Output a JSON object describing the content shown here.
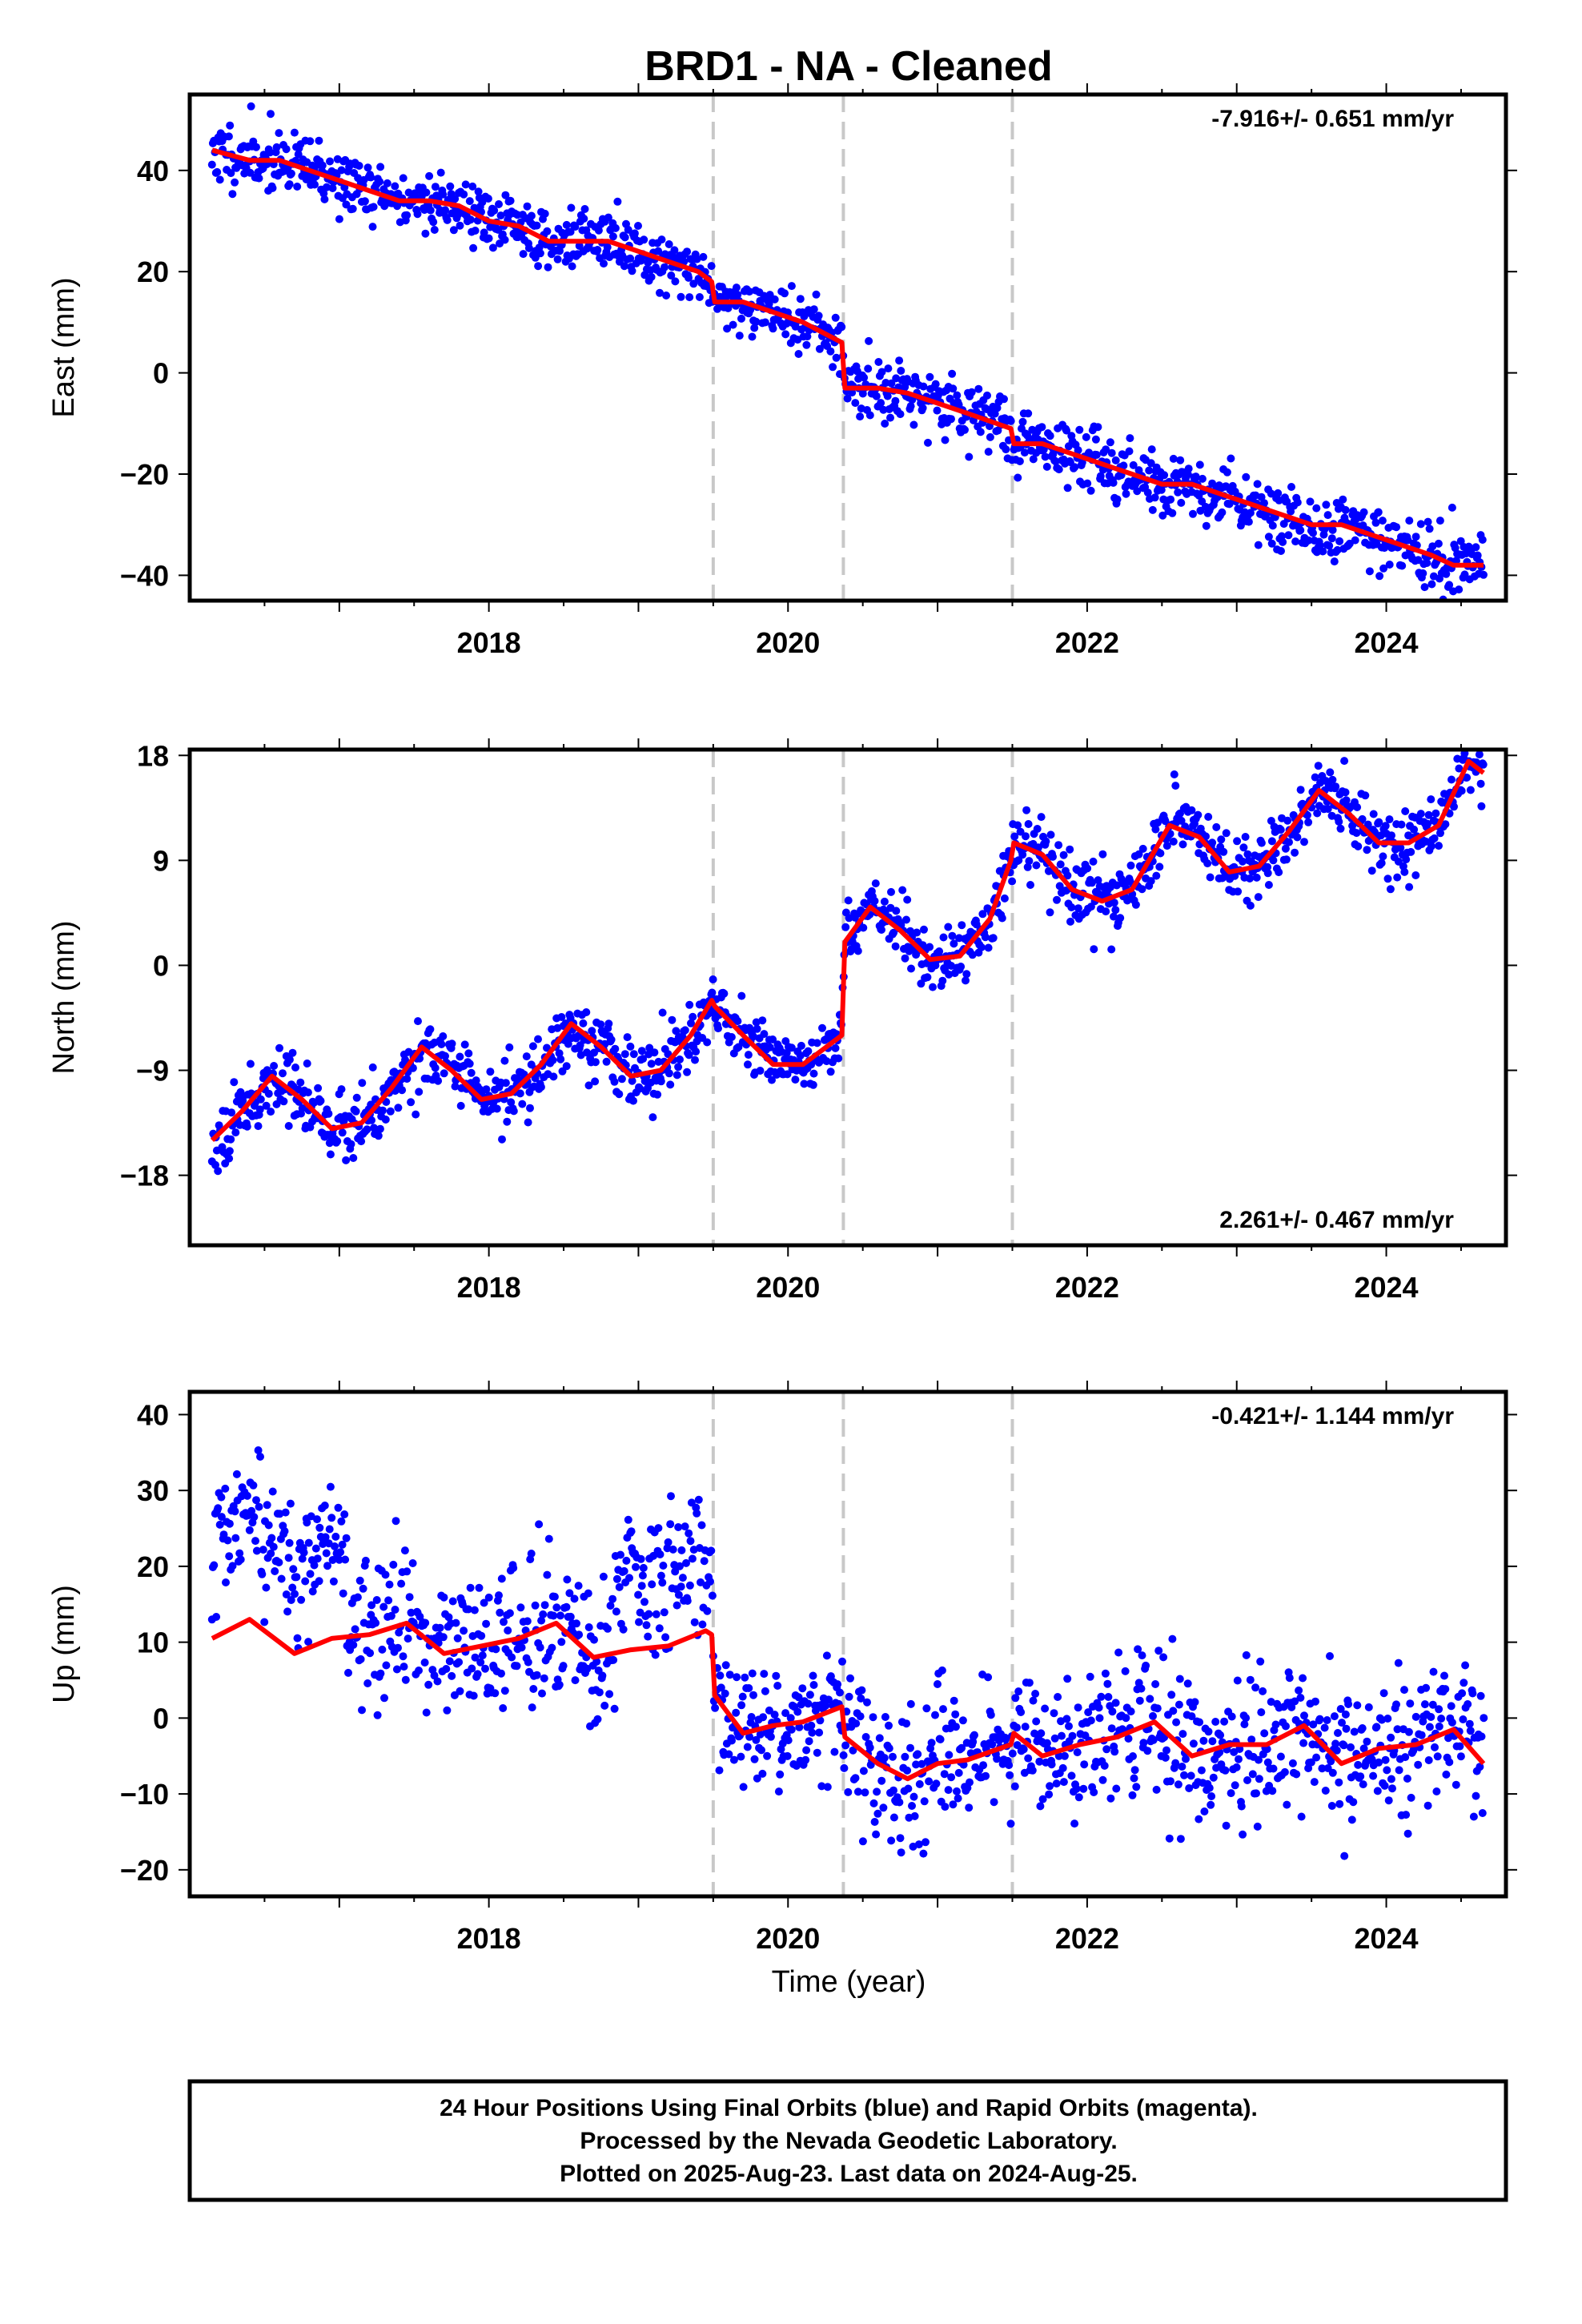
{
  "title": "BRD1  - NA - Cleaned",
  "xlabel": "Time (year)",
  "footer": {
    "line1": "24 Hour Positions Using Final Orbits (blue) and Rapid Orbits (magenta).",
    "line2": "Processed by the Nevada Geodetic Laboratory.",
    "line3": "Plotted on 2025-Aug-23. Last data on 2024-Aug-25."
  },
  "colors": {
    "data": "#0000ff",
    "model": "#ff0000",
    "steps": "#c8c8c8",
    "frame": "#000000"
  },
  "chart_data": [
    {
      "type": "scatter",
      "component": "East",
      "ylabel": "East (mm)",
      "rate_text": "-7.916+/- 0.651 mm/yr",
      "rate_position": "top-right",
      "xlim": [
        2016.0,
        2024.8
      ],
      "ylim": [
        -45,
        55
      ],
      "xticks": [
        2018,
        2020,
        2022,
        2024
      ],
      "yticks": [
        -40,
        -20,
        0,
        20,
        40
      ],
      "steps": [
        2019.5,
        2020.37,
        2021.5
      ],
      "model": {
        "x": [
          2016.15,
          2016.4,
          2016.6,
          2016.8,
          2017.0,
          2017.2,
          2017.4,
          2017.6,
          2017.8,
          2018.0,
          2018.2,
          2018.4,
          2018.6,
          2018.8,
          2019.0,
          2019.2,
          2019.4,
          2019.49,
          2019.51,
          2019.7,
          2019.9,
          2020.1,
          2020.36,
          2020.38,
          2020.6,
          2020.8,
          2021.0,
          2021.2,
          2021.49,
          2021.51,
          2021.7,
          2021.9,
          2022.1,
          2022.3,
          2022.5,
          2022.7,
          2022.9,
          2023.1,
          2023.3,
          2023.5,
          2023.7,
          2023.9,
          2024.1,
          2024.3,
          2024.45,
          2024.65
        ],
        "y": [
          44,
          42,
          42,
          40,
          38,
          36,
          34,
          34,
          33,
          30,
          29,
          26,
          26,
          26,
          24,
          22,
          20,
          18,
          14,
          14,
          12,
          10,
          6,
          -3,
          -3,
          -4,
          -6,
          -8,
          -11,
          -14,
          -14,
          -16,
          -18,
          -20,
          -22,
          -22,
          -24,
          -26,
          -28,
          -30,
          -30,
          -32,
          -34,
          -36,
          -38,
          -38
        ]
      },
      "noise": 3.0,
      "seed": 11
    },
    {
      "type": "scatter",
      "component": "North",
      "ylabel": "North (mm)",
      "rate_text": "2.261+/- 0.467 mm/yr",
      "rate_position": "bottom-right",
      "xlim": [
        2016.0,
        2024.8
      ],
      "ylim": [
        -24,
        18.5
      ],
      "xticks": [
        2018,
        2020,
        2022,
        2024
      ],
      "yticks": [
        -18,
        -9,
        0,
        9,
        18
      ],
      "steps": [
        2019.5,
        2020.37,
        2021.5
      ],
      "model": {
        "x": [
          2016.15,
          2016.35,
          2016.55,
          2016.75,
          2016.95,
          2017.15,
          2017.35,
          2017.55,
          2017.75,
          2017.95,
          2018.15,
          2018.35,
          2018.55,
          2018.75,
          2018.95,
          2019.15,
          2019.35,
          2019.49,
          2019.51,
          2019.7,
          2019.9,
          2020.1,
          2020.36,
          2020.38,
          2020.55,
          2020.75,
          2020.95,
          2021.15,
          2021.35,
          2021.49,
          2021.51,
          2021.7,
          2021.9,
          2022.1,
          2022.3,
          2022.55,
          2022.75,
          2022.95,
          2023.15,
          2023.35,
          2023.55,
          2023.75,
          2023.95,
          2024.15,
          2024.35,
          2024.55,
          2024.65
        ],
        "y": [
          -15,
          -12.5,
          -9.5,
          -11.5,
          -14,
          -13.5,
          -10.5,
          -7,
          -9,
          -11.5,
          -11,
          -8.5,
          -5,
          -7,
          -9.5,
          -9,
          -6,
          -3,
          -3.5,
          -6,
          -8.5,
          -8.5,
          -6,
          2,
          5,
          3,
          0.5,
          0.8,
          4,
          9,
          10.5,
          9.5,
          6.5,
          5.5,
          6.5,
          12,
          11,
          8,
          8.5,
          11.5,
          15,
          13,
          10.5,
          10.5,
          12,
          17.5,
          16.5
        ]
      },
      "noise": 1.4,
      "seed": 23
    },
    {
      "type": "scatter",
      "component": "Up",
      "ylabel": "Up (mm)",
      "rate_text": "-0.421+/- 1.144 mm/yr",
      "rate_position": "top-right",
      "xlim": [
        2016.0,
        2024.8
      ],
      "ylim": [
        -23.5,
        43
      ],
      "xticks": [
        2018,
        2020,
        2022,
        2024
      ],
      "yticks": [
        -20,
        -10,
        0,
        10,
        20,
        30,
        40
      ],
      "steps": [
        2019.5,
        2020.37,
        2021.5
      ],
      "model": {
        "x": [
          2016.15,
          2016.4,
          2016.7,
          2016.95,
          2017.2,
          2017.45,
          2017.7,
          2017.95,
          2018.2,
          2018.45,
          2018.7,
          2018.95,
          2019.2,
          2019.45,
          2019.49,
          2019.51,
          2019.7,
          2019.9,
          2020.1,
          2020.36,
          2020.38,
          2020.6,
          2020.8,
          2021.0,
          2021.2,
          2021.49,
          2021.51,
          2021.7,
          2021.95,
          2022.2,
          2022.45,
          2022.7,
          2022.95,
          2023.2,
          2023.45,
          2023.7,
          2023.95,
          2024.2,
          2024.45,
          2024.65
        ],
        "y": [
          10.5,
          13,
          8.5,
          10.5,
          11,
          12.5,
          8.5,
          9.5,
          10.5,
          12.5,
          8,
          9,
          9.5,
          11.5,
          11,
          3,
          -2,
          -1,
          -0.5,
          1.5,
          -2.5,
          -6,
          -8,
          -6,
          -5.5,
          -3.5,
          -2,
          -5,
          -3.5,
          -2.5,
          -0.5,
          -5,
          -3.5,
          -3.5,
          -1,
          -6,
          -4,
          -3.5,
          -1.5,
          -6
        ]
      },
      "offsets": [
        {
          "from": 2016.15,
          "to": 2017.05,
          "add": 12
        },
        {
          "from": 2018.85,
          "to": 2019.5,
          "add": 9
        }
      ],
      "noise": 4.6,
      "seed": 37
    }
  ]
}
